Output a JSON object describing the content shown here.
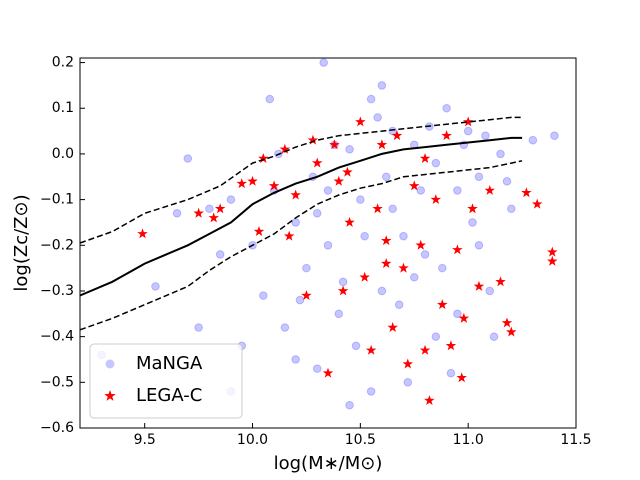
{
  "chart_data": {
    "type": "scatter",
    "xlabel": "log(M∗/M⊙)",
    "ylabel": "log(Zc/Z⊙)",
    "xlim": [
      9.2,
      11.5
    ],
    "ylim": [
      -0.6,
      0.21
    ],
    "xticks": [
      9.5,
      {
        "value": 10.0,
        "label": "10.0"
      },
      10.5,
      {
        "value": 11.0,
        "label": "11.0"
      },
      11.5
    ],
    "yticks": [
      {
        "value": -0.6,
        "label": "−0.6"
      },
      {
        "value": -0.5,
        "label": "−0.5"
      },
      {
        "value": -0.4,
        "label": "−0.4"
      },
      {
        "value": -0.3,
        "label": "−0.3"
      },
      {
        "value": -0.2,
        "label": "−0.2"
      },
      {
        "value": -0.1,
        "label": "−0.1"
      },
      {
        "value": 0.0,
        "label": "0.0"
      },
      0.1,
      0.2
    ],
    "legend": "lower left",
    "series": [
      {
        "name": "MaNGA",
        "marker": "circle",
        "color": "#0000ff",
        "alpha": 0.22,
        "x": [
          9.3,
          9.55,
          9.65,
          9.7,
          9.75,
          9.8,
          9.9,
          9.95,
          10.05,
          10.1,
          10.2,
          10.25,
          10.3,
          10.35,
          10.4,
          10.45,
          10.5,
          10.55,
          10.6,
          10.62,
          10.65,
          10.7,
          10.72,
          10.75,
          10.8,
          10.85,
          10.9,
          10.95,
          11.0,
          11.05,
          11.1,
          11.15,
          11.2,
          11.3,
          11.4,
          10.33,
          10.08,
          9.9,
          10.0,
          10.15,
          10.28,
          10.38,
          10.42,
          10.48,
          10.52,
          10.58,
          10.68,
          10.78,
          10.82,
          10.88,
          10.92,
          10.98,
          11.02,
          11.08,
          11.12,
          11.18,
          10.2,
          10.35,
          10.45,
          10.55,
          10.65,
          10.75,
          10.85,
          10.95,
          11.05,
          10.6,
          10.12,
          10.22,
          9.85,
          10.3
        ],
        "y": [
          -0.44,
          -0.29,
          -0.13,
          -0.01,
          -0.38,
          -0.12,
          -0.1,
          -0.42,
          -0.31,
          -0.08,
          -0.15,
          -0.25,
          -0.47,
          -0.2,
          -0.35,
          -0.55,
          -0.1,
          0.12,
          -0.3,
          -0.05,
          0.05,
          -0.18,
          -0.5,
          0.02,
          -0.22,
          -0.4,
          0.1,
          -0.08,
          0.05,
          -0.2,
          -0.3,
          0.0,
          -0.12,
          0.03,
          0.04,
          0.2,
          0.12,
          -0.52,
          -0.2,
          -0.38,
          -0.05,
          0.02,
          -0.28,
          -0.42,
          -0.18,
          0.08,
          -0.33,
          -0.08,
          0.06,
          -0.25,
          -0.48,
          0.02,
          -0.15,
          0.04,
          -0.4,
          -0.06,
          -0.45,
          -0.08,
          0.01,
          -0.52,
          -0.12,
          -0.27,
          -0.02,
          -0.35,
          -0.05,
          0.15,
          0.0,
          -0.32,
          -0.22,
          -0.13
        ]
      },
      {
        "name": "LEGA-C",
        "marker": "star",
        "color": "#ff0000",
        "alpha": 1,
        "x": [
          9.49,
          9.75,
          9.82,
          9.85,
          9.95,
          10.0,
          10.03,
          10.05,
          10.1,
          10.15,
          10.17,
          10.2,
          10.25,
          10.28,
          10.3,
          10.35,
          10.38,
          10.4,
          10.42,
          10.45,
          10.5,
          10.52,
          10.55,
          10.58,
          10.6,
          10.62,
          10.65,
          10.67,
          10.7,
          10.72,
          10.75,
          10.78,
          10.8,
          10.82,
          10.85,
          10.88,
          10.9,
          10.92,
          10.95,
          10.97,
          11.0,
          11.02,
          11.05,
          11.1,
          11.15,
          11.18,
          11.2,
          11.27,
          11.32,
          11.39,
          11.39,
          10.98,
          10.44,
          10.62,
          10.8
        ],
        "y": [
          -0.175,
          -0.13,
          -0.14,
          -0.12,
          -0.065,
          -0.06,
          -0.17,
          -0.01,
          -0.07,
          0.01,
          -0.18,
          -0.09,
          -0.31,
          0.03,
          -0.02,
          -0.48,
          0.02,
          -0.06,
          -0.3,
          -0.15,
          0.07,
          -0.27,
          -0.43,
          -0.12,
          0.02,
          -0.19,
          -0.38,
          0.04,
          -0.25,
          -0.46,
          -0.07,
          -0.2,
          -0.43,
          -0.54,
          -0.1,
          -0.33,
          0.04,
          -0.42,
          -0.21,
          -0.49,
          0.07,
          -0.12,
          -0.29,
          -0.08,
          -0.28,
          -0.37,
          -0.39,
          -0.085,
          -0.11,
          -0.215,
          -0.235,
          -0.36,
          -0.04,
          -0.24,
          -0.01
        ]
      }
    ],
    "lines": [
      {
        "style": "solid",
        "color": "#000000",
        "x": [
          9.2,
          9.35,
          9.5,
          9.6,
          9.7,
          9.8,
          9.9,
          10.0,
          10.1,
          10.2,
          10.3,
          10.4,
          10.5,
          10.6,
          10.7,
          10.8,
          10.9,
          11.0,
          11.1,
          11.2,
          11.25
        ],
        "y": [
          -0.31,
          -0.28,
          -0.24,
          -0.22,
          -0.2,
          -0.175,
          -0.15,
          -0.11,
          -0.085,
          -0.065,
          -0.05,
          -0.03,
          -0.015,
          0.0,
          0.01,
          0.015,
          0.02,
          0.025,
          0.03,
          0.035,
          0.035
        ]
      },
      {
        "style": "dashed",
        "color": "#000000",
        "x": [
          9.2,
          9.35,
          9.5,
          9.7,
          9.85,
          10.0,
          10.1,
          10.2,
          10.3,
          10.4,
          10.5,
          10.6,
          10.7,
          10.8,
          10.9,
          11.0,
          11.1,
          11.2,
          11.25
        ],
        "y": [
          -0.195,
          -0.17,
          -0.13,
          -0.1,
          -0.07,
          -0.02,
          -0.005,
          0.015,
          0.03,
          0.04,
          0.045,
          0.05,
          0.055,
          0.06,
          0.065,
          0.07,
          0.075,
          0.08,
          0.08
        ]
      },
      {
        "style": "dashed",
        "color": "#000000",
        "x": [
          9.2,
          9.35,
          9.5,
          9.7,
          9.8,
          9.9,
          10.0,
          10.1,
          10.2,
          10.3,
          10.4,
          10.5,
          10.6,
          10.7,
          10.8,
          10.9,
          11.0,
          11.1,
          11.2,
          11.25
        ],
        "y": [
          -0.385,
          -0.36,
          -0.33,
          -0.29,
          -0.255,
          -0.225,
          -0.2,
          -0.175,
          -0.14,
          -0.11,
          -0.09,
          -0.075,
          -0.065,
          -0.05,
          -0.045,
          -0.04,
          -0.035,
          -0.03,
          -0.02,
          -0.015
        ]
      }
    ]
  }
}
